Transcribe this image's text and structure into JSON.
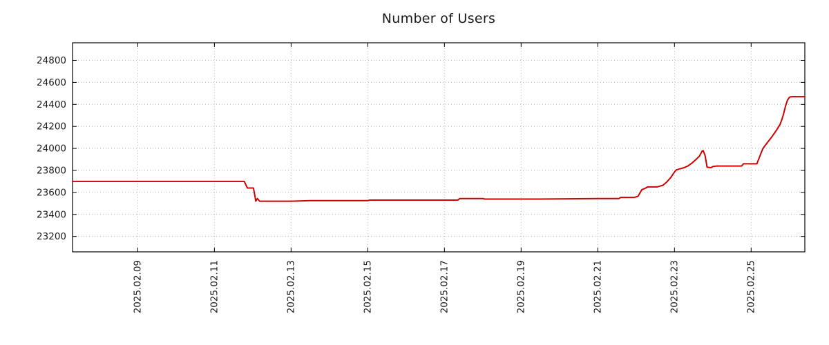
{
  "chart_data": {
    "type": "line",
    "title": "Number of Users",
    "xlabel": "",
    "ylabel": "",
    "xlim": [
      7.3,
      26.4
    ],
    "ylim": [
      23060,
      24960
    ],
    "grid": true,
    "legend_position": "none",
    "line_color": "#cc0000",
    "grid_color": "#b8b8b8",
    "axis_color": "#000000",
    "text_color": "#1a1a1a",
    "x_axis": {
      "tick_values": [
        9,
        11,
        13,
        15,
        17,
        19,
        21,
        23,
        25
      ],
      "tick_labels": [
        "2025.02.09",
        "2025.02.11",
        "2025.02.13",
        "2025.02.15",
        "2025.02.17",
        "2025.02.19",
        "2025.02.21",
        "2025.02.23",
        "2025.02.25"
      ]
    },
    "y_axis": {
      "tick_values": [
        23200,
        23400,
        23600,
        23800,
        24000,
        24200,
        24400,
        24600,
        24800
      ],
      "tick_labels": [
        "23200",
        "23400",
        "23600",
        "23800",
        "24000",
        "24200",
        "24400",
        "24600",
        "24800"
      ]
    },
    "series": [
      {
        "name": "Number of Users",
        "color": "#cc0000",
        "points": [
          [
            7.3,
            23700
          ],
          [
            11.78,
            23700
          ],
          [
            11.86,
            23640
          ],
          [
            12.02,
            23640
          ],
          [
            12.08,
            23520
          ],
          [
            12.12,
            23545
          ],
          [
            12.18,
            23520
          ],
          [
            13.0,
            23520
          ],
          [
            13.5,
            23525
          ],
          [
            15.0,
            23525
          ],
          [
            15.05,
            23530
          ],
          [
            17.35,
            23530
          ],
          [
            17.4,
            23545
          ],
          [
            18.0,
            23545
          ],
          [
            18.05,
            23540
          ],
          [
            19.5,
            23540
          ],
          [
            21.0,
            23545
          ],
          [
            21.55,
            23545
          ],
          [
            21.6,
            23555
          ],
          [
            21.95,
            23555
          ],
          [
            22.05,
            23565
          ],
          [
            22.15,
            23625
          ],
          [
            22.25,
            23640
          ],
          [
            22.3,
            23650
          ],
          [
            22.55,
            23650
          ],
          [
            22.6,
            23655
          ],
          [
            22.7,
            23665
          ],
          [
            22.8,
            23695
          ],
          [
            22.9,
            23735
          ],
          [
            23.0,
            23785
          ],
          [
            23.05,
            23805
          ],
          [
            23.15,
            23815
          ],
          [
            23.25,
            23825
          ],
          [
            23.35,
            23840
          ],
          [
            23.45,
            23865
          ],
          [
            23.55,
            23895
          ],
          [
            23.65,
            23930
          ],
          [
            23.72,
            23975
          ],
          [
            23.75,
            23980
          ],
          [
            23.8,
            23935
          ],
          [
            23.85,
            23830
          ],
          [
            23.95,
            23825
          ],
          [
            24.0,
            23835
          ],
          [
            24.1,
            23840
          ],
          [
            24.75,
            23840
          ],
          [
            24.8,
            23860
          ],
          [
            25.15,
            23860
          ],
          [
            25.2,
            23905
          ],
          [
            25.3,
            23995
          ],
          [
            25.35,
            24020
          ],
          [
            25.45,
            24065
          ],
          [
            25.55,
            24110
          ],
          [
            25.65,
            24160
          ],
          [
            25.75,
            24215
          ],
          [
            25.8,
            24260
          ],
          [
            25.85,
            24320
          ],
          [
            25.9,
            24390
          ],
          [
            25.95,
            24440
          ],
          [
            26.0,
            24465
          ],
          [
            26.05,
            24470
          ],
          [
            26.4,
            24470
          ]
        ]
      }
    ]
  }
}
